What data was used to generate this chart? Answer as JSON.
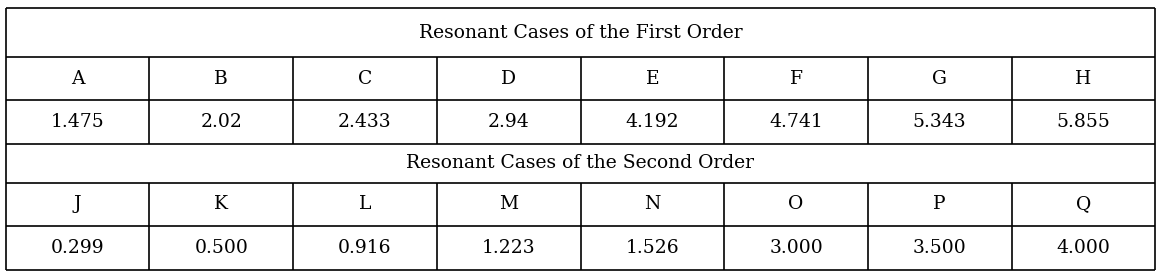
{
  "first_order_header": "Resonant Cases of the First Order",
  "second_order_header": "Resonant Cases of the Second Order",
  "first_order_labels": [
    "A",
    "B",
    "C",
    "D",
    "E",
    "F",
    "G",
    "H"
  ],
  "first_order_values": [
    "1.475",
    "2.02",
    "2.433",
    "2.94",
    "4.192",
    "4.741",
    "5.343",
    "5.855"
  ],
  "second_order_labels": [
    "J",
    "K",
    "L",
    "M",
    "N",
    "O",
    "P",
    "Q"
  ],
  "second_order_values": [
    "0.299",
    "0.500",
    "0.916",
    "1.223",
    "1.526",
    "3.000",
    "3.500",
    "4.000"
  ],
  "n_cols": 8,
  "background_color": "#ffffff",
  "border_color": "#000000",
  "text_color": "#000000",
  "header_fontsize": 13.5,
  "cell_fontsize": 13.5,
  "fig_width": 11.61,
  "fig_height": 2.78,
  "dpi": 100
}
